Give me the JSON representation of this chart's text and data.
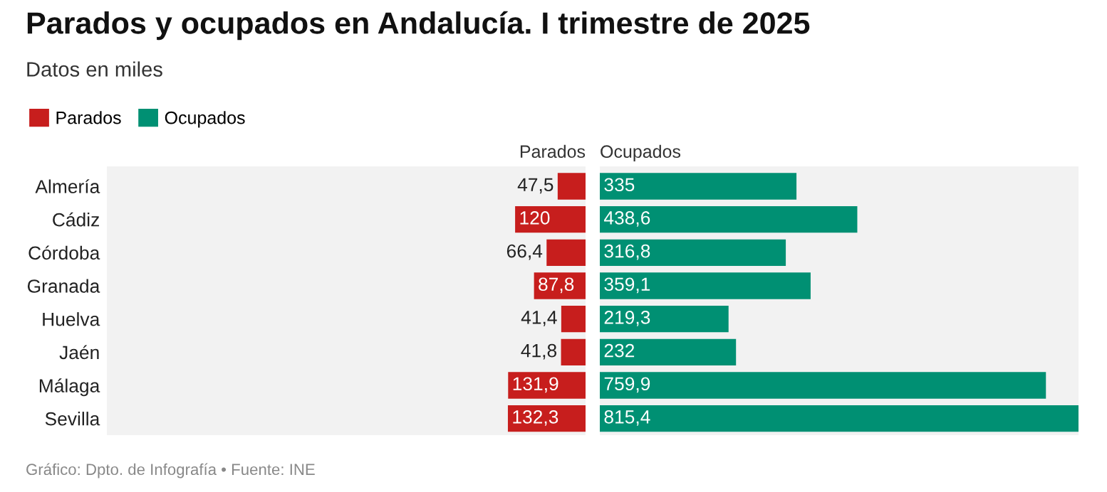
{
  "chart_data": [
    {
      "type": "bar",
      "orientation": "horizontal",
      "title": "Parados y ocupados en Andalucía. I trimestre de 2025",
      "subtitle": "Datos en miles",
      "legend": "top left",
      "tick_labels": "y",
      "categories": [
        "Almería",
        "Cádiz",
        "Córdoba",
        "Granada",
        "Huelva",
        "Jaén",
        "Málaga",
        "Sevilla"
      ],
      "xlim": [
        815.4,
        0
      ],
      "series": [
        {
          "name": "Parados",
          "color": "#c71e1d",
          "values": [
            47.5,
            120,
            66.4,
            87.8,
            41.4,
            41.8,
            131.9,
            132.3
          ],
          "value_labels": [
            "47,5",
            "120",
            "66,4",
            "87,8",
            "41,4",
            "41,8",
            "131,9",
            "132,3"
          ]
        }
      ],
      "annotations": [
        "Gráfico: Dpto. de Infografía • Fuente: INE"
      ]
    },
    {
      "type": "bar",
      "orientation": "horizontal",
      "tick_labels": false,
      "categories": [
        null,
        null,
        null,
        null,
        null,
        null,
        null,
        null
      ],
      "xlim": [
        0,
        815.4
      ],
      "series": [
        {
          "name": "Ocupados",
          "color": "#009073",
          "values": [
            335,
            438.6,
            316.8,
            359.1,
            219.3,
            232,
            759.9,
            815.4
          ],
          "value_labels": [
            "335",
            "438,6",
            "316,8",
            "359,1",
            "219,3",
            "232",
            "759,9",
            "815,4"
          ]
        }
      ]
    }
  ]
}
